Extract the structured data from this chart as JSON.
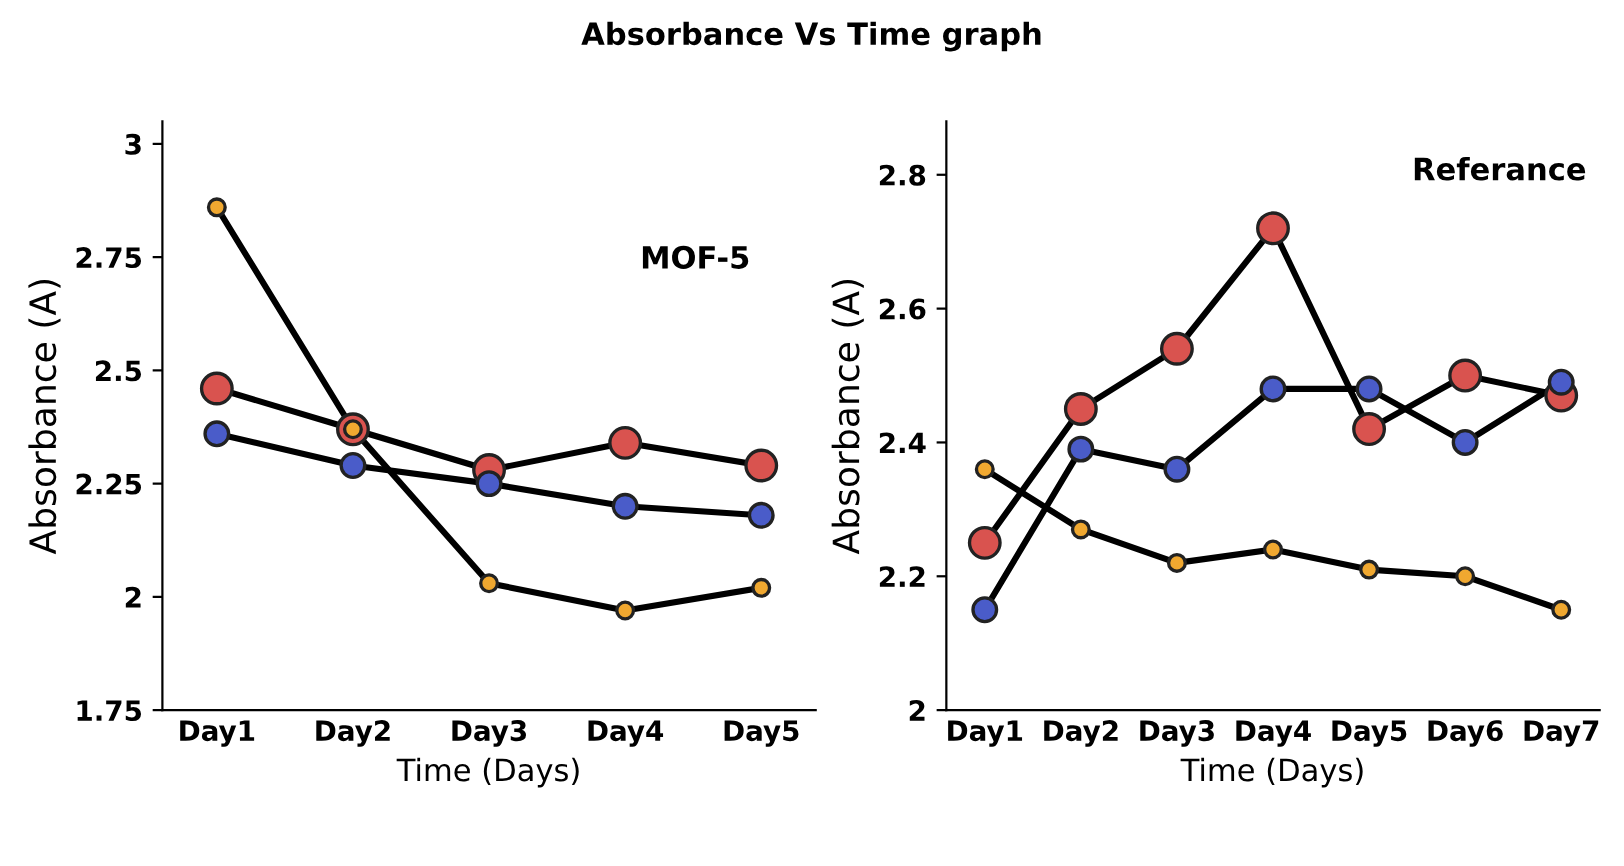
{
  "chart_data": [
    {
      "type": "line",
      "title": "Absorbance Vs Time graph",
      "xlabel": "Time (Days)",
      "ylabel": "Absorbance (A)",
      "annotations": [
        "MOF-5"
      ],
      "categories": [
        "Day1",
        "Day2",
        "Day3",
        "Day4",
        "Day5"
      ],
      "ylim": [
        1.75,
        3.05
      ],
      "yticks": [
        1.75,
        2,
        2.25,
        2.5,
        2.75,
        3
      ],
      "marker": "circle",
      "line_style": "solid",
      "series": [
        {
          "color": "#d9534f",
          "values": [
            2.46,
            2.37,
            2.28,
            2.34,
            2.29
          ]
        },
        {
          "color": "#4a5cc9",
          "values": [
            2.36,
            2.29,
            2.25,
            2.2,
            2.18
          ]
        },
        {
          "color": "#f0a830",
          "values": [
            2.86,
            2.37,
            2.03,
            1.97,
            2.02
          ]
        }
      ]
    },
    {
      "type": "line",
      "xlabel": "Time (Days)",
      "ylabel": "Absorbance (A)",
      "annotations": [
        "Referance"
      ],
      "categories": [
        "Day1",
        "Day2",
        "Day3",
        "Day4",
        "Day5",
        "Day6",
        "Day7"
      ],
      "ylim": [
        2,
        2.88
      ],
      "yticks": [
        2,
        2.2,
        2.4,
        2.6,
        2.8
      ],
      "marker": "circle",
      "line_style": "solid",
      "series": [
        {
          "color": "#d9534f",
          "values": [
            2.25,
            2.45,
            2.54,
            2.72,
            2.42,
            2.5,
            2.47
          ]
        },
        {
          "color": "#4a5cc9",
          "values": [
            2.15,
            2.39,
            2.36,
            2.48,
            2.48,
            2.4,
            2.49
          ]
        },
        {
          "color": "#f0a830",
          "values": [
            2.36,
            2.27,
            2.22,
            2.24,
            2.21,
            2.2,
            2.15
          ]
        }
      ]
    }
  ]
}
